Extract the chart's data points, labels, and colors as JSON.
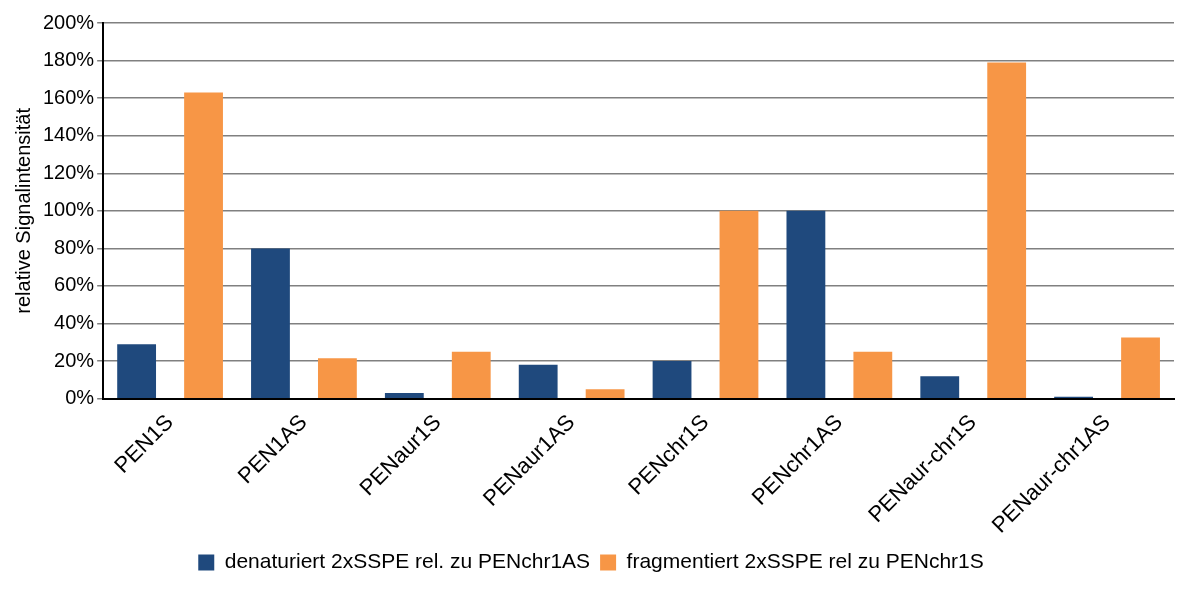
{
  "chart_data": {
    "type": "bar",
    "ylabel": "relative Signalintensität",
    "categories": [
      "PEN1S",
      "PEN1AS",
      "PENaur1S",
      "PENaur1AS",
      "PENchr1S",
      "PENchr1AS",
      "PENaur-chr1S",
      "PENaur-chr1AS"
    ],
    "series": [
      {
        "name": "denaturiert 2xSSPE rel. zu PENchr1AS",
        "color": "#1f497d",
        "values": [
          29,
          80,
          3,
          18,
          20,
          100,
          12,
          1
        ]
      },
      {
        "name": "fragmentiert 2xSSPE rel zu PENchr1S",
        "color": "#f79646",
        "values": [
          163,
          21.5,
          25,
          5,
          100,
          25,
          179,
          32.5
        ]
      }
    ],
    "ylim": [
      0,
      200
    ],
    "yticks": [
      {
        "value": 0,
        "label": "0%"
      },
      {
        "value": 20,
        "label": "20%"
      },
      {
        "value": 40,
        "label": "40%"
      },
      {
        "value": 60,
        "label": "60%"
      },
      {
        "value": 80,
        "label": "80%"
      },
      {
        "value": 100,
        "label": "100%"
      },
      {
        "value": 120,
        "label": "120%"
      },
      {
        "value": 140,
        "label": "140%"
      },
      {
        "value": 160,
        "label": "160%"
      },
      {
        "value": 180,
        "label": "180%"
      },
      {
        "value": 200,
        "label": "200%"
      }
    ],
    "grid": "y",
    "legend": "bottom"
  }
}
